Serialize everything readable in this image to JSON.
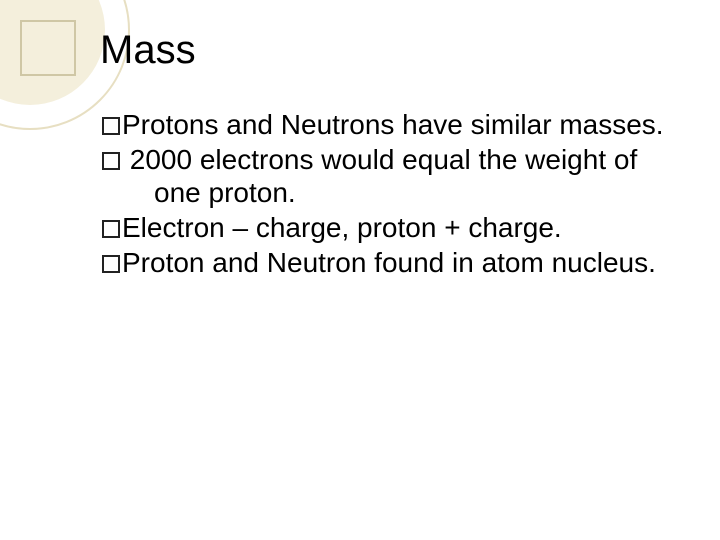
{
  "slide": {
    "title": "Mass",
    "title_fontsize": 40,
    "title_color": "#000000",
    "body_fontsize": 28,
    "body_color": "#000000",
    "background_color": "#ffffff",
    "accent_fill": "#f4efdc",
    "accent_stroke": "#e7dfc2",
    "accent_square_stroke": "#cfc7a5",
    "bullets": [
      {
        "text": "Protons and Neutrons have similar masses."
      },
      {
        "text": " 2000 electrons would equal the weight of one proton."
      },
      {
        "text": "Electron – charge, proton + charge."
      },
      {
        "text": "Proton and Neutron found in atom nucleus."
      }
    ]
  }
}
